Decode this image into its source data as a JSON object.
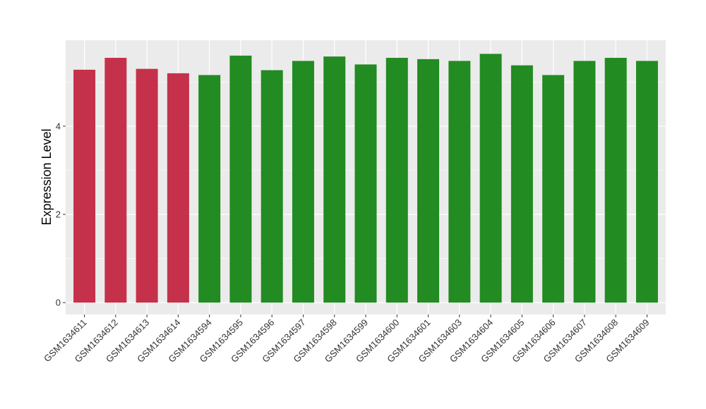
{
  "chart_data": {
    "type": "bar",
    "title": "",
    "xlabel": "",
    "ylabel": "Expression Level",
    "ylim": [
      -0.27,
      5.95
    ],
    "yticks": [
      0,
      2,
      4
    ],
    "grid": true,
    "categories": [
      "GSM1634611",
      "GSM1634612",
      "GSM1634613",
      "GSM1634614",
      "GSM1634594",
      "GSM1634595",
      "GSM1634596",
      "GSM1634597",
      "GSM1634598",
      "GSM1634599",
      "GSM1634600",
      "GSM1634601",
      "GSM1634603",
      "GSM1634604",
      "GSM1634605",
      "GSM1634606",
      "GSM1634607",
      "GSM1634608",
      "GSM1634609"
    ],
    "values": [
      5.28,
      5.55,
      5.3,
      5.2,
      5.16,
      5.6,
      5.27,
      5.48,
      5.58,
      5.4,
      5.55,
      5.52,
      5.48,
      5.64,
      5.38,
      5.16,
      5.48,
      5.55,
      5.48
    ],
    "groups": [
      "red",
      "red",
      "red",
      "red",
      "green",
      "green",
      "green",
      "green",
      "green",
      "green",
      "green",
      "green",
      "green",
      "green",
      "green",
      "green",
      "green",
      "green",
      "green"
    ],
    "colors": {
      "red": "#C5314A",
      "green": "#228B22",
      "panel": "#EBEBEB",
      "grid_major": "#FFFFFF"
    }
  }
}
